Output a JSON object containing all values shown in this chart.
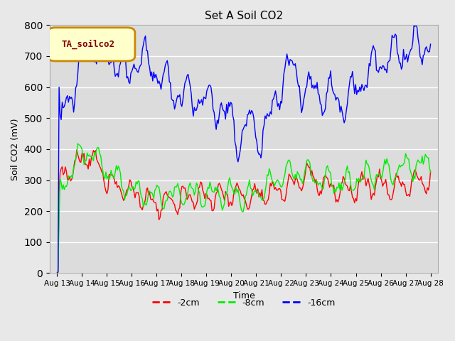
{
  "title": "Set A Soil CO2",
  "ylabel": "Soil CO2 (mV)",
  "xlabel": "Time",
  "legend_label": "TA_soilco2",
  "ylim": [
    0,
    800
  ],
  "series_labels": [
    "-2cm",
    "-8cm",
    "-16cm"
  ],
  "series_colors": [
    "#ff0000",
    "#00ee00",
    "#0000ff"
  ],
  "bg_color": "#e8e8e8",
  "plot_bg_color": "#dcdcdc",
  "grid_color": "#ffffff",
  "annotation_fc": "#ffffcc",
  "annotation_ec": "#cc8800",
  "annotation_tc": "#800000",
  "x_tick_labels": [
    "Aug 13",
    "Aug 14",
    "Aug 15",
    "Aug 16",
    "Aug 17",
    "Aug 18",
    "Aug 19",
    "Aug 20",
    "Aug 21",
    "Aug 22",
    "Aug 23",
    "Aug 24",
    "Aug 25",
    "Aug 26",
    "Aug 27",
    "Aug 28"
  ],
  "yticks": [
    0,
    100,
    200,
    300,
    400,
    500,
    600,
    700,
    800
  ]
}
